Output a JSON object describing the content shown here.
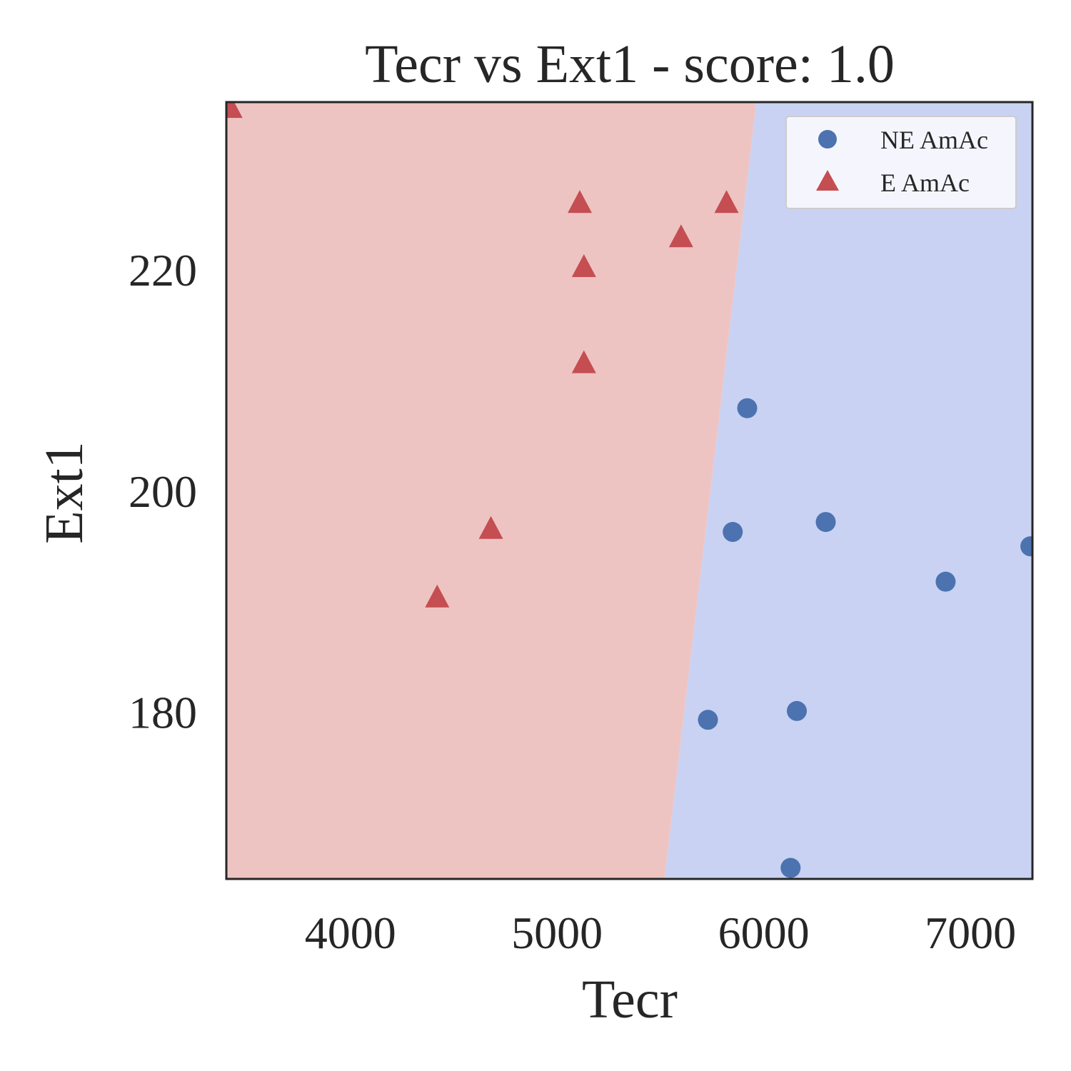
{
  "chart_data": {
    "type": "scatter",
    "title": "Tecr vs Ext1 - score: 1.0",
    "xlabel": "Tecr",
    "ylabel": "Ext1",
    "xlim": [
      3400,
      7300
    ],
    "ylim": [
      164.9,
      235.2
    ],
    "xticks": [
      4000,
      5000,
      6000,
      7000
    ],
    "xtick_labels": [
      "4000",
      "5000",
      "6000",
      "7000"
    ],
    "yticks": [
      180,
      200,
      220
    ],
    "ytick_labels": [
      "180",
      "200",
      "220"
    ],
    "grid": false,
    "legend_position": "top-right",
    "decision_boundary": {
      "points": [
        [
          5520,
          164.9
        ],
        [
          5965,
          235.2
        ]
      ],
      "left_region_class": "E AmAc",
      "right_region_class": "NE AmAc"
    },
    "colors": {
      "ne_marker": "#4C72B0",
      "e_marker": "#C44E52",
      "ne_region": "#C9D2F2",
      "e_region": "#EEC4C3",
      "axes_frame": "#262626",
      "legend_bg": "#F5F6FD",
      "legend_border": "#CCCCCC"
    },
    "series": [
      {
        "name": "NE AmAc",
        "marker": "circle",
        "x": [
          5920,
          5850,
          6300,
          7290,
          6880,
          5730,
          6160,
          6130
        ],
        "y": [
          207.5,
          196.3,
          197.2,
          195.0,
          191.8,
          179.3,
          180.1,
          165.9
        ]
      },
      {
        "name": "E AmAc",
        "marker": "triangle",
        "x": [
          3420,
          5110,
          5820,
          5600,
          5130,
          5130,
          4680,
          4420
        ],
        "y": [
          234.7,
          226.1,
          226.1,
          223.0,
          220.3,
          211.6,
          196.6,
          190.4
        ]
      }
    ]
  }
}
